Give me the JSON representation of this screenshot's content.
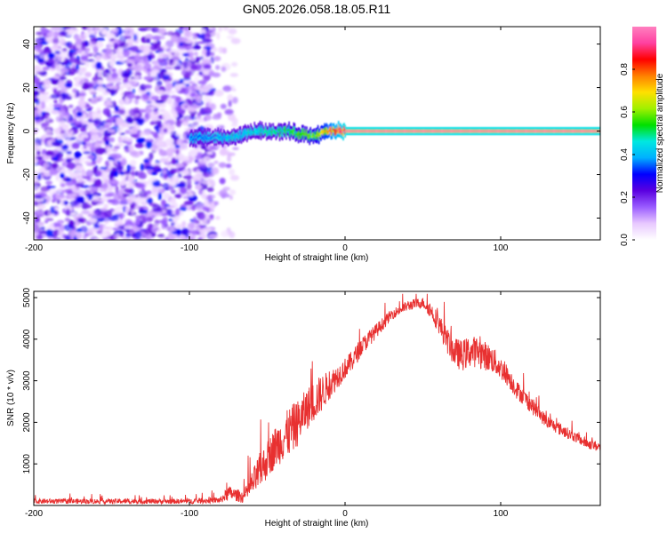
{
  "title": "GN05.2026.058.18.05.R11",
  "chart_data": [
    {
      "type": "heatmap",
      "title": "GN05.2026.058.18.05.R11",
      "xlabel": "Height of straight line (km)",
      "ylabel": "Frequency (Hz)",
      "xlim": [
        -200,
        164
      ],
      "ylim": [
        -50,
        48
      ],
      "xticks": [
        -200,
        -100,
        0,
        100
      ],
      "xtick_labels": [
        "-200",
        "-100",
        "0",
        "100"
      ],
      "yticks": [
        -40,
        -20,
        0,
        20,
        40
      ],
      "ytick_labels": [
        "-40",
        "-20",
        "0",
        "20",
        "40"
      ],
      "colorbar": {
        "label": "Normalized spectral amplitude",
        "range": [
          0,
          1
        ],
        "ticks": [
          0.0,
          0.2,
          0.4,
          0.6,
          0.8
        ],
        "tick_labels": [
          "0.0",
          "0.2",
          "0.4",
          "0.6",
          "0.8"
        ],
        "colors": [
          "#ffffff",
          "#e8c8ff",
          "#9a5cff",
          "#5a00e0",
          "#0000ff",
          "#00b0ff",
          "#00e8e0",
          "#00e000",
          "#a0f000",
          "#ffe000",
          "#ff8000",
          "#ff0000",
          "#ff40a0",
          "#ff80c0"
        ]
      },
      "features": [
        {
          "name": "broadband noise",
          "x_range": [
            -200,
            -85
          ],
          "freq_range": [
            -50,
            48
          ],
          "amplitude": 0.18
        },
        {
          "name": "scattered noise",
          "x_range": [
            -85,
            -70
          ],
          "freq_range": [
            -50,
            48
          ],
          "amplitude": 0.08
        },
        {
          "name": "signal track",
          "x_range": [
            -100,
            164
          ],
          "freq_hz_at": [
            [
              -100,
              -3
            ],
            [
              -70,
              -3
            ],
            [
              -60,
              0
            ],
            [
              -40,
              0
            ],
            [
              -20,
              -2
            ],
            [
              -10,
              0
            ],
            [
              0,
              0
            ],
            [
              164,
              0
            ]
          ],
          "amplitude_at": [
            [
              -100,
              0.3
            ],
            [
              -60,
              0.45
            ],
            [
              -20,
              0.6
            ],
            [
              0,
              1.0
            ],
            [
              164,
              1.0
            ]
          ]
        }
      ]
    },
    {
      "type": "line",
      "xlabel": "Height of straight line (km)",
      "ylabel": "SNR (10 * v/v)",
      "xlim": [
        -200,
        164
      ],
      "ylim": [
        0,
        5150
      ],
      "xticks": [
        -200,
        -100,
        0,
        100
      ],
      "xtick_labels": [
        "-200",
        "-100",
        "0",
        "100"
      ],
      "yticks": [
        1000,
        2000,
        3000,
        4000,
        5000
      ],
      "ytick_labels": [
        "1000",
        "2000",
        "3000",
        "4000",
        "5000"
      ],
      "color": "#e83030",
      "envelope": {
        "x": [
          -200,
          -150,
          -100,
          -80,
          -75,
          -70,
          -65,
          -60,
          -55,
          -50,
          -45,
          -40,
          -35,
          -30,
          -25,
          -20,
          -15,
          -10,
          -5,
          0,
          5,
          10,
          15,
          20,
          25,
          30,
          35,
          40,
          45,
          50,
          55,
          60,
          65,
          70,
          75,
          80,
          85,
          90,
          95,
          100,
          105,
          110,
          115,
          120,
          125,
          130,
          135,
          140,
          145,
          150,
          155,
          164
        ],
        "base": [
          100,
          100,
          100,
          130,
          300,
          250,
          200,
          500,
          800,
          1100,
          1400,
          1600,
          1800,
          2000,
          2300,
          2500,
          2700,
          2900,
          3100,
          3300,
          3500,
          3800,
          4000,
          4200,
          4400,
          4600,
          4700,
          4800,
          4850,
          4880,
          4700,
          4400,
          4000,
          3700,
          3600,
          3700,
          3700,
          3600,
          3500,
          3300,
          3100,
          2800,
          2600,
          2400,
          2200,
          2000,
          1900,
          1800,
          1700,
          1600,
          1500,
          1400
        ],
        "spread": [
          120,
          120,
          120,
          150,
          350,
          300,
          300,
          600,
          900,
          900,
          1000,
          1100,
          1200,
          1100,
          1000,
          1000,
          900,
          700,
          600,
          500,
          500,
          450,
          400,
          350,
          300,
          250,
          250,
          250,
          250,
          250,
          400,
          500,
          600,
          700,
          750,
          750,
          750,
          700,
          650,
          550,
          500,
          450,
          400,
          400,
          350,
          300,
          300,
          300,
          250,
          250,
          250,
          250
        ]
      }
    }
  ]
}
